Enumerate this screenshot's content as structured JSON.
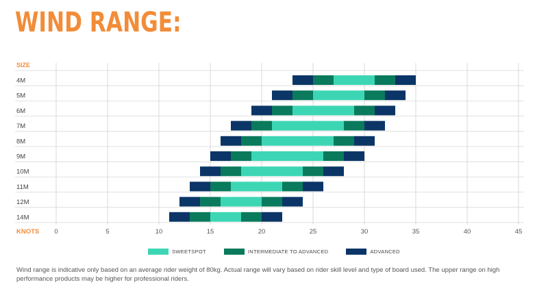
{
  "title": "WIND RANGE:",
  "chart_data": {
    "type": "bar",
    "orientation": "horizontal-stacked-ranges",
    "ylabel": "SIZE",
    "xlabel": "KNOTS",
    "xlim": [
      0,
      45
    ],
    "xticks": [
      0,
      5,
      10,
      15,
      20,
      25,
      30,
      35,
      40,
      45
    ],
    "grid": true,
    "legend_position": "bottom",
    "categories": [
      "4M",
      "5M",
      "6M",
      "7M",
      "8M",
      "9M",
      "10M",
      "11M",
      "12M",
      "14M"
    ],
    "segments": [
      {
        "size": "4M",
        "ranges": [
          [
            23,
            25,
            "advanced"
          ],
          [
            25,
            27,
            "intermediate"
          ],
          [
            27,
            31,
            "sweetspot"
          ],
          [
            31,
            33,
            "intermediate"
          ],
          [
            33,
            35,
            "advanced"
          ]
        ]
      },
      {
        "size": "5M",
        "ranges": [
          [
            21,
            23,
            "advanced"
          ],
          [
            23,
            25,
            "intermediate"
          ],
          [
            25,
            30,
            "sweetspot"
          ],
          [
            30,
            32,
            "intermediate"
          ],
          [
            32,
            34,
            "advanced"
          ]
        ]
      },
      {
        "size": "6M",
        "ranges": [
          [
            19,
            21,
            "advanced"
          ],
          [
            21,
            23,
            "intermediate"
          ],
          [
            23,
            29,
            "sweetspot"
          ],
          [
            29,
            31,
            "intermediate"
          ],
          [
            31,
            33,
            "advanced"
          ]
        ]
      },
      {
        "size": "7M",
        "ranges": [
          [
            17,
            19,
            "advanced"
          ],
          [
            19,
            21,
            "intermediate"
          ],
          [
            21,
            28,
            "sweetspot"
          ],
          [
            28,
            30,
            "intermediate"
          ],
          [
            30,
            32,
            "advanced"
          ]
        ]
      },
      {
        "size": "8M",
        "ranges": [
          [
            16,
            18,
            "advanced"
          ],
          [
            18,
            20,
            "intermediate"
          ],
          [
            20,
            27,
            "sweetspot"
          ],
          [
            27,
            29,
            "intermediate"
          ],
          [
            29,
            31,
            "advanced"
          ]
        ]
      },
      {
        "size": "9M",
        "ranges": [
          [
            15,
            17,
            "advanced"
          ],
          [
            17,
            19,
            "intermediate"
          ],
          [
            19,
            26,
            "sweetspot"
          ],
          [
            26,
            28,
            "intermediate"
          ],
          [
            28,
            30,
            "advanced"
          ]
        ]
      },
      {
        "size": "10M",
        "ranges": [
          [
            14,
            16,
            "advanced"
          ],
          [
            16,
            18,
            "intermediate"
          ],
          [
            18,
            24,
            "sweetspot"
          ],
          [
            24,
            26,
            "intermediate"
          ],
          [
            26,
            28,
            "advanced"
          ]
        ]
      },
      {
        "size": "11M",
        "ranges": [
          [
            13,
            15,
            "advanced"
          ],
          [
            15,
            17,
            "intermediate"
          ],
          [
            17,
            22,
            "sweetspot"
          ],
          [
            22,
            24,
            "intermediate"
          ],
          [
            24,
            26,
            "advanced"
          ]
        ]
      },
      {
        "size": "12M",
        "ranges": [
          [
            12,
            14,
            "advanced"
          ],
          [
            14,
            16,
            "intermediate"
          ],
          [
            16,
            20,
            "sweetspot"
          ],
          [
            20,
            22,
            "intermediate"
          ],
          [
            22,
            24,
            "advanced"
          ]
        ]
      },
      {
        "size": "14M",
        "ranges": [
          [
            11,
            13,
            "advanced"
          ],
          [
            13,
            15,
            "intermediate"
          ],
          [
            15,
            18,
            "sweetspot"
          ],
          [
            18,
            20,
            "intermediate"
          ],
          [
            20,
            22,
            "advanced"
          ]
        ]
      }
    ],
    "series": [
      {
        "key": "sweetspot",
        "name": "SWEETSPOT",
        "color": "#3dd6b5"
      },
      {
        "key": "intermediate",
        "name": "INTERMEDIATE TO ADVANCED",
        "color": "#0a7a5c"
      },
      {
        "key": "advanced",
        "name": "ADVANCED",
        "color": "#0b3566"
      }
    ]
  },
  "colors": {
    "title": "#f28c38",
    "axis_label": "#f28c38",
    "grid": "#d8d8d8"
  },
  "note": "Wind range is indicative only based on an average rider weight of 80kg. Actual range will vary based on rider skill level and type of board used. The upper range on high performance products may be higher for professional riders."
}
